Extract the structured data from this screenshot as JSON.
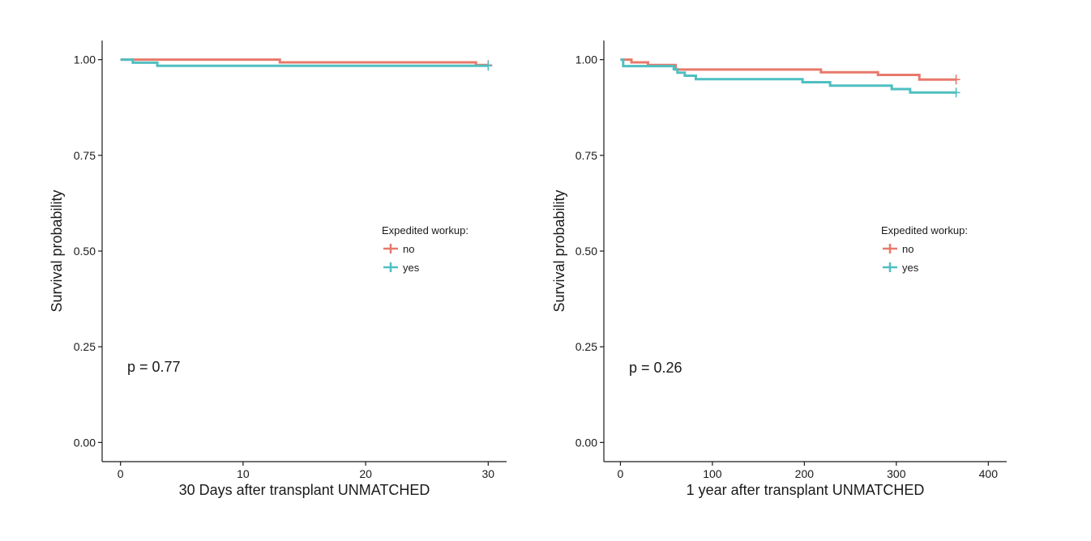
{
  "chart_data": [
    {
      "type": "line",
      "subtype": "kaplan-meier step",
      "xlabel": "30 Days after transplant UNMATCHED",
      "ylabel": "Survival probability",
      "xlim": [
        -1.5,
        31.5
      ],
      "ylim": [
        -0.05,
        1.05
      ],
      "x_ticks": [
        0,
        10,
        20,
        30
      ],
      "x_tick_labels": [
        "0",
        "10",
        "20",
        "30"
      ],
      "y_ticks": [
        0,
        0.25,
        0.5,
        0.75,
        1.0
      ],
      "y_tick_labels": [
        "0.00",
        "0.25",
        "0.50",
        "0.75",
        "1.00"
      ],
      "annotation": "p = 0.77",
      "grid": false,
      "legend": {
        "title": "Expedited workup:",
        "position": "right"
      },
      "series": [
        {
          "name": "no",
          "color": "#E8796B",
          "x": [
            0,
            13,
            29,
            30
          ],
          "y": [
            1.0,
            0.993,
            0.986,
            0.986
          ],
          "censor_x": [
            30
          ]
        },
        {
          "name": "yes",
          "color": "#4FBFC1",
          "x": [
            0,
            1,
            3,
            30
          ],
          "y": [
            1.0,
            0.992,
            0.984,
            0.984
          ],
          "censor_x": [
            30
          ]
        }
      ]
    },
    {
      "type": "line",
      "subtype": "kaplan-meier step",
      "xlabel": "1 year after transplant UNMATCHED",
      "ylabel": "Survival probability",
      "xlim": [
        -18,
        420
      ],
      "ylim": [
        -0.05,
        1.05
      ],
      "x_ticks": [
        0,
        100,
        200,
        300,
        400
      ],
      "x_tick_labels": [
        "0",
        "100",
        "200",
        "300",
        "400"
      ],
      "y_ticks": [
        0,
        0.25,
        0.5,
        0.75,
        1.0
      ],
      "y_tick_labels": [
        "0.00",
        "0.25",
        "0.50",
        "0.75",
        "1.00"
      ],
      "annotation": "p = 0.26",
      "grid": false,
      "legend": {
        "title": "Expedited workup:",
        "position": "right"
      },
      "series": [
        {
          "name": "no",
          "color": "#E8796B",
          "x": [
            0,
            12,
            30,
            60,
            218,
            280,
            325,
            365
          ],
          "y": [
            1.0,
            0.993,
            0.986,
            0.974,
            0.967,
            0.96,
            0.948,
            0.948
          ],
          "censor_x": [
            365
          ]
        },
        {
          "name": "yes",
          "color": "#4FBFC1",
          "x": [
            0,
            3,
            58,
            62,
            70,
            82,
            198,
            228,
            295,
            315,
            365
          ],
          "y": [
            1.0,
            0.983,
            0.975,
            0.966,
            0.958,
            0.949,
            0.941,
            0.932,
            0.923,
            0.914,
            0.914
          ],
          "censor_x": [
            365
          ]
        }
      ]
    }
  ]
}
